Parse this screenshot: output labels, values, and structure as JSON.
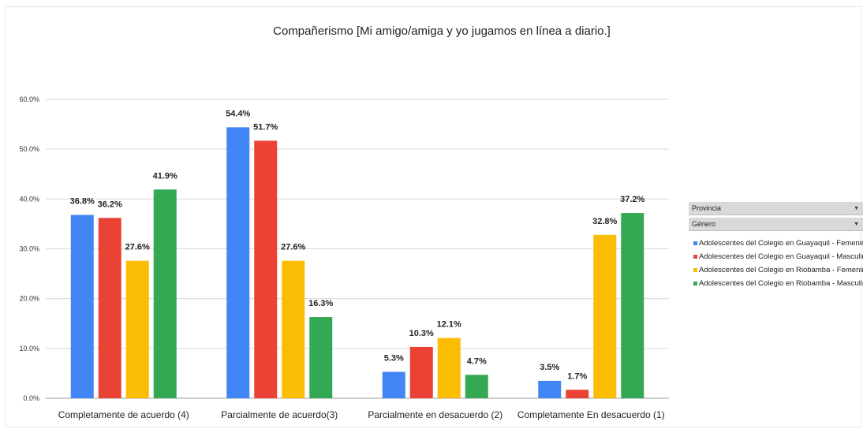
{
  "chart_data": {
    "type": "bar",
    "title": "Compañerismo [Mi amigo/amiga y yo jugamos en línea a diario.]",
    "xlabel": "",
    "ylabel": "",
    "ylim": [
      0,
      60
    ],
    "yticks": [
      "0.0%",
      "10.0%",
      "20.0%",
      "30.0%",
      "40.0%",
      "50.0%",
      "60.0%"
    ],
    "categories": [
      "Completamente de acuerdo (4)",
      "Parcialmente de acuerdo(3)",
      "Parcialmente en desacuerdo (2)",
      "Completamente En desacuerdo (1)"
    ],
    "series": [
      {
        "name": "Adolescentes del Colegio en Guayaquil - Femenino",
        "color": "#4285f4",
        "values": [
          36.8,
          54.4,
          5.3,
          3.5
        ],
        "labels": [
          "36.8%",
          "54.4%",
          "5.3%",
          "3.5%"
        ]
      },
      {
        "name": "Adolescentes del Colegio en Guayaquil - Masculino",
        "color": "#ea4335",
        "values": [
          36.2,
          51.7,
          10.3,
          1.7
        ],
        "labels": [
          "36.2%",
          "51.7%",
          "10.3%",
          "1.7%"
        ]
      },
      {
        "name": "Adolescentes del Colegio en Riobamba - Femenino",
        "color": "#fbbc04",
        "values": [
          27.6,
          27.6,
          12.1,
          32.8
        ],
        "labels": [
          "27.6%",
          "27.6%",
          "12.1%",
          "32.8%"
        ]
      },
      {
        "name": "Adolescentes del Colegio en Riobamba - Masculino",
        "color": "#34a853",
        "values": [
          41.9,
          16.3,
          4.7,
          37.2
        ],
        "labels": [
          "41.9%",
          "16.3%",
          "4.7%",
          "37.2%"
        ]
      }
    ],
    "grid": true,
    "legend_position": "right"
  },
  "filters": {
    "provincia_label": "Provincia",
    "genero_label": "Género",
    "arrow": "▼"
  },
  "colors": {
    "grid": "#d9d9d9",
    "text": "#222222",
    "filter_bg": "#d9d9d9"
  }
}
